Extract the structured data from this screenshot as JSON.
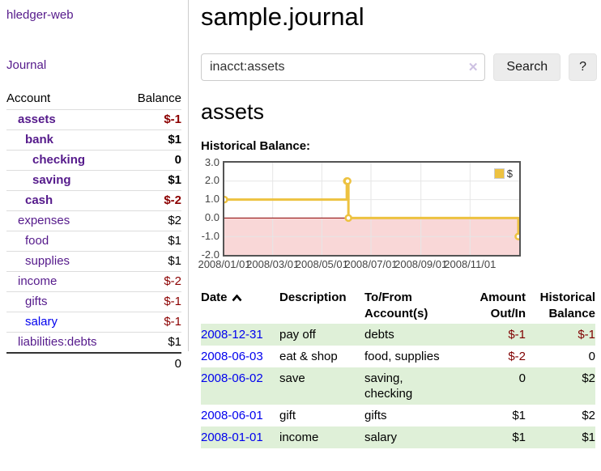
{
  "app": {
    "title": "hledger-web",
    "nav_journal": "Journal"
  },
  "sidebar": {
    "col_account": "Account",
    "col_balance": "Balance",
    "accounts": [
      {
        "name": "assets",
        "indent": 0,
        "balance": "$-1",
        "in_account": true,
        "blue": false
      },
      {
        "name": "bank",
        "indent": 1,
        "balance": "$1",
        "in_account": true,
        "blue": false
      },
      {
        "name": "checking",
        "indent": 2,
        "balance": "0",
        "in_account": true,
        "blue": false
      },
      {
        "name": "saving",
        "indent": 2,
        "balance": "$1",
        "in_account": true,
        "blue": false
      },
      {
        "name": "cash",
        "indent": 1,
        "balance": "$-2",
        "in_account": true,
        "blue": false
      },
      {
        "name": "expenses",
        "indent": 0,
        "balance": "$2",
        "in_account": false,
        "blue": false
      },
      {
        "name": "food",
        "indent": 1,
        "balance": "$1",
        "in_account": false,
        "blue": false
      },
      {
        "name": "supplies",
        "indent": 1,
        "balance": "$1",
        "in_account": false,
        "blue": false
      },
      {
        "name": "income",
        "indent": 0,
        "balance": "$-2",
        "in_account": false,
        "blue": false
      },
      {
        "name": "gifts",
        "indent": 1,
        "balance": "$-1",
        "in_account": false,
        "blue": false
      },
      {
        "name": "salary",
        "indent": 1,
        "balance": "$-1",
        "in_account": false,
        "blue": true
      },
      {
        "name": "liabilities:debts",
        "indent": 0,
        "balance": "$1",
        "in_account": false,
        "blue": false
      }
    ],
    "total": "0"
  },
  "header": {
    "title": "sample.journal"
  },
  "search": {
    "value": "inacct:assets",
    "clear_icon": "✕",
    "button": "Search",
    "help_button": "?"
  },
  "account_page": {
    "heading": "assets",
    "chart_label": "Historical Balance:"
  },
  "chart_data": {
    "type": "line",
    "title": "Historical Balance",
    "legend": "$",
    "legend_position": "top-right",
    "grid": true,
    "xmin": "2008-01-01",
    "xmax": "2009-01-01",
    "ymin": -2.0,
    "ymax": 3.0,
    "yticks": [
      "3.0",
      "2.0",
      "1.0",
      "0.0",
      "-1.0",
      "-2.0"
    ],
    "xticks": [
      "2008-01-01",
      "2008-03-01",
      "2008-05-01",
      "2008-07-01",
      "2008-09-01",
      "2008-11-01"
    ],
    "xtick_labels": [
      "2008/01/01",
      "2008/03/01",
      "2008/05/01",
      "2008/07/01",
      "2008/09/01",
      "2008/11/01"
    ],
    "series": [
      {
        "name": "$",
        "step": true,
        "points": [
          [
            "2008-01-01",
            1
          ],
          [
            "2008-06-01",
            2
          ],
          [
            "2008-06-02",
            2
          ],
          [
            "2008-06-03",
            0
          ],
          [
            "2008-12-31",
            -1
          ]
        ]
      }
    ],
    "colors": {
      "line": "#edc240",
      "marker_fill": "#ffffff",
      "negative_region": "#f9d7d7",
      "zero_line": "#8b0000",
      "grid": "#e6e6e6",
      "border": "#545454"
    }
  },
  "register": {
    "columns": [
      {
        "label": "Date"
      },
      {
        "label": "Description"
      },
      {
        "label": "To/From Account(s)"
      },
      {
        "label": "Amount Out/In"
      },
      {
        "label": "Historical Balance"
      }
    ],
    "rows": [
      {
        "date": "2008-12-31",
        "description": "pay off",
        "accounts": "debts",
        "amount": "$-1",
        "balance": "$-1"
      },
      {
        "date": "2008-06-03",
        "description": "eat & shop",
        "accounts": "food, supplies",
        "amount": "$-2",
        "balance": "0"
      },
      {
        "date": "2008-06-02",
        "description": "save",
        "accounts": "saving, checking",
        "amount": "0",
        "balance": "$2"
      },
      {
        "date": "2008-06-01",
        "description": "gift",
        "accounts": "gifts",
        "amount": "$1",
        "balance": "$2"
      },
      {
        "date": "2008-01-01",
        "description": "income",
        "accounts": "salary",
        "amount": "$1",
        "balance": "$1"
      }
    ]
  }
}
